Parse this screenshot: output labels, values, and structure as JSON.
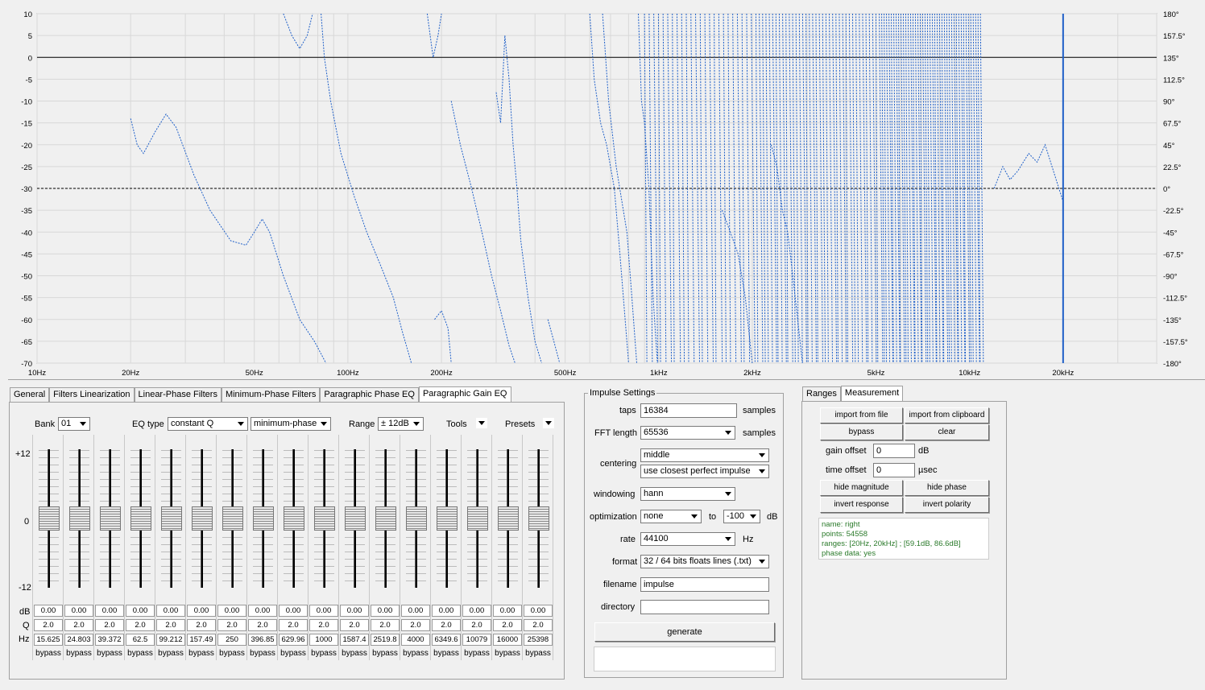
{
  "plot": {
    "y_left_ticks": [
      "10",
      "5",
      "0",
      "-5",
      "-10",
      "-15",
      "-20",
      "-25",
      "-30",
      "-35",
      "-40",
      "-45",
      "-50",
      "-55",
      "-60",
      "-65",
      "-70"
    ],
    "y_right_ticks": [
      "180°",
      "157.5°",
      "135°",
      "112.5°",
      "90°",
      "67.5°",
      "45°",
      "22.5°",
      "0°",
      "-22.5°",
      "-45°",
      "-67.5°",
      "-90°",
      "-112.5°",
      "-135°",
      "-157.5°",
      "-180°"
    ],
    "x_ticks": [
      "10Hz",
      "20Hz",
      "50Hz",
      "100Hz",
      "200Hz",
      "500Hz",
      "1kHz",
      "2kHz",
      "5kHz",
      "10kHz",
      "20kHz"
    ],
    "trace_color": "#1e5fc8",
    "cursor_color": "#1e5fc8"
  },
  "tabs": [
    "General",
    "Filters Linearization",
    "Linear-Phase Filters",
    "Minimum-Phase Filters",
    "Paragraphic Phase EQ",
    "Paragraphic Gain EQ"
  ],
  "eq": {
    "bank_label": "Bank",
    "bank_value": "01",
    "eqtype_label": "EQ type",
    "eqtype_value": "constant Q",
    "phase_value": "minimum-phase",
    "range_label": "Range",
    "range_value": "± 12dB",
    "tools_label": "Tools",
    "presets_label": "Presets",
    "scale_top": "+12",
    "scale_mid": "0",
    "scale_bot": "-12",
    "row_db": "dB",
    "row_q": "Q",
    "row_hz": "Hz",
    "bands": [
      {
        "db": "0.00",
        "q": "2.0",
        "hz": "15.625",
        "bypass": "bypass"
      },
      {
        "db": "0.00",
        "q": "2.0",
        "hz": "24.803",
        "bypass": "bypass"
      },
      {
        "db": "0.00",
        "q": "2.0",
        "hz": "39.372",
        "bypass": "bypass"
      },
      {
        "db": "0.00",
        "q": "2.0",
        "hz": "62.5",
        "bypass": "bypass"
      },
      {
        "db": "0.00",
        "q": "2.0",
        "hz": "99.212",
        "bypass": "bypass"
      },
      {
        "db": "0.00",
        "q": "2.0",
        "hz": "157.49",
        "bypass": "bypass"
      },
      {
        "db": "0.00",
        "q": "2.0",
        "hz": "250",
        "bypass": "bypass"
      },
      {
        "db": "0.00",
        "q": "2.0",
        "hz": "396.85",
        "bypass": "bypass"
      },
      {
        "db": "0.00",
        "q": "2.0",
        "hz": "629.96",
        "bypass": "bypass"
      },
      {
        "db": "0.00",
        "q": "2.0",
        "hz": "1000",
        "bypass": "bypass"
      },
      {
        "db": "0.00",
        "q": "2.0",
        "hz": "1587.4",
        "bypass": "bypass"
      },
      {
        "db": "0.00",
        "q": "2.0",
        "hz": "2519.8",
        "bypass": "bypass"
      },
      {
        "db": "0.00",
        "q": "2.0",
        "hz": "4000",
        "bypass": "bypass"
      },
      {
        "db": "0.00",
        "q": "2.0",
        "hz": "6349.6",
        "bypass": "bypass"
      },
      {
        "db": "0.00",
        "q": "2.0",
        "hz": "10079",
        "bypass": "bypass"
      },
      {
        "db": "0.00",
        "q": "2.0",
        "hz": "16000",
        "bypass": "bypass"
      },
      {
        "db": "0.00",
        "q": "2.0",
        "hz": "25398",
        "bypass": "bypass"
      }
    ]
  },
  "impulse": {
    "title": "Impulse Settings",
    "taps_label": "taps",
    "taps_value": "16384",
    "taps_unit": "samples",
    "fft_label": "FFT length",
    "fft_value": "65536",
    "fft_unit": "samples",
    "centering_label": "centering",
    "centering_value": "middle",
    "centering_mode": "use closest perfect impulse",
    "windowing_label": "windowing",
    "windowing_value": "hann",
    "optimization_label": "optimization",
    "optimization_value": "none",
    "to_label": "to",
    "to_value": "-100",
    "db_unit": "dB",
    "rate_label": "rate",
    "rate_value": "44100",
    "rate_unit": "Hz",
    "format_label": "format",
    "format_value": "32 / 64 bits floats lines (.txt)",
    "filename_label": "filename",
    "filename_value": "impulse",
    "directory_label": "directory",
    "directory_value": "",
    "generate_label": "generate"
  },
  "measure": {
    "tabs": [
      "Ranges",
      "Measurement"
    ],
    "import_file": "import from file",
    "import_clip": "import from clipboard",
    "bypass": "bypass",
    "clear": "clear",
    "gain_label": "gain offset",
    "gain_value": "0",
    "gain_unit": "dB",
    "time_label": "time offset",
    "time_value": "0",
    "time_unit": "µsec",
    "hide_mag": "hide magnitude",
    "hide_phase": "hide phase",
    "invert_resp": "invert response",
    "invert_pol": "invert polarity",
    "info": [
      "name: right",
      "points: 54558",
      "ranges: [20Hz, 20kHz] ; [59.1dB, 86.6dB]",
      "phase data: yes"
    ]
  }
}
